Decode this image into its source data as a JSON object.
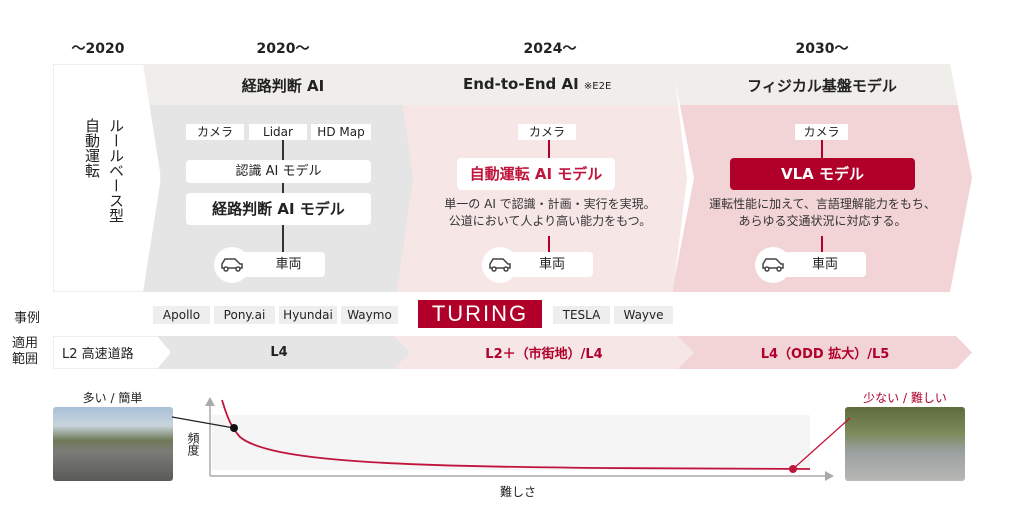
{
  "years": [
    "〜2020",
    "2020〜",
    "2024〜",
    "2030〜"
  ],
  "rule_based": {
    "line1": "ルールベース型",
    "line2": "自動運転"
  },
  "route_ai": {
    "title": "経路判断 AI",
    "inputs": [
      "カメラ",
      "Lidar",
      "HD Map"
    ],
    "recognition": "認識 AI モデル",
    "model": "経路判断 AI モデル",
    "vehicle": "車両"
  },
  "e2e": {
    "title": "End-to-End AI",
    "note": "※E2E",
    "input": "カメラ",
    "model": "自動運転 AI モデル",
    "desc1": "単一の AI で認識・計画・実行を実現。",
    "desc2": "公道において人より高い能力をもつ。",
    "vehicle": "車両"
  },
  "physical": {
    "title": "フィジカル基盤モデル",
    "input": "カメラ",
    "model": "VLA モデル",
    "desc1": "運転性能に加えて、言語理解能力をもち、",
    "desc2": "あらゆる交通状況に対応する。",
    "vehicle": "車両"
  },
  "examples": {
    "label": "事例",
    "items": [
      "Apollo",
      "Pony.ai",
      "Hyundai",
      "Waymo"
    ],
    "logo": "TURING",
    "items2": [
      "TESLA",
      "Wayve"
    ]
  },
  "scope": {
    "label1": "適用",
    "label2": "範囲",
    "levels": [
      "L2 高速道路",
      "L4",
      "L2＋（市街地）/L4",
      "L4（ODD 拡大）/L5"
    ]
  },
  "chart": {
    "left_label": "多い / 簡単",
    "right_label": "少ない / 難しい",
    "y_label": "頻度",
    "x_label": "難しさ"
  },
  "colors": {
    "accent": "#b0002a",
    "pink_light": "#f7e6e6",
    "pink": "#f2d3d6",
    "gray": "#e5e5e5"
  }
}
